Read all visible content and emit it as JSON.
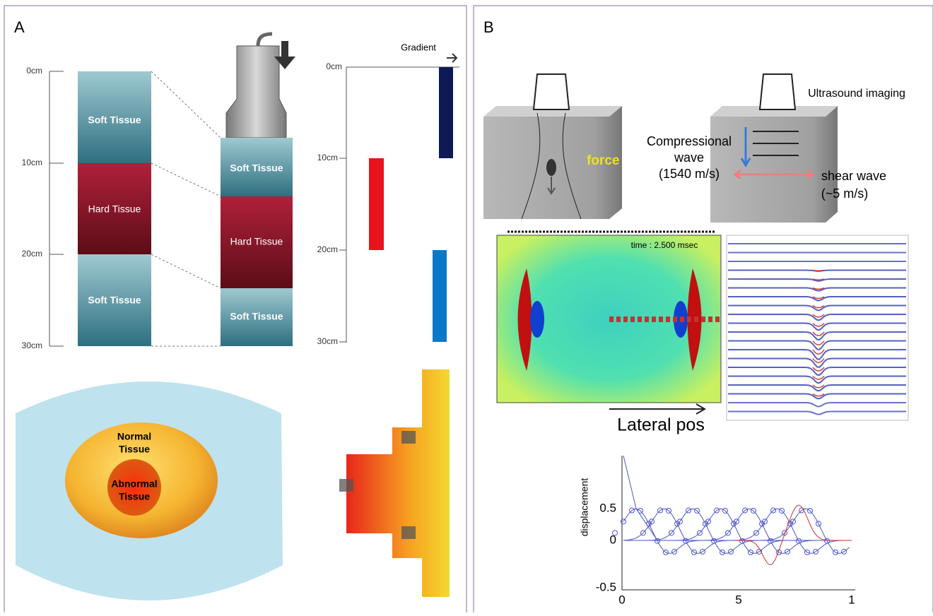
{
  "panel_a": {
    "label": "A",
    "depth_axis": {
      "ticks": [
        "0cm",
        "10cm",
        "20cm",
        "30cm"
      ]
    },
    "column_before": [
      "Soft Tissue",
      "Hard Tissue",
      "Soft Tissue"
    ],
    "column_after": [
      "Soft Tissue",
      "Hard Tissue",
      "Soft Tissue"
    ],
    "gradient": {
      "title": "Gradient",
      "ticks": [
        "0cm",
        "10cm",
        "20cm",
        "30cm"
      ]
    },
    "tissue_map": {
      "outer": [
        "Normal",
        "Tissue"
      ],
      "inner": [
        "Abnormal",
        "Tissue"
      ]
    }
  },
  "panel_b": {
    "label": "B",
    "push": {
      "force": "force"
    },
    "imaging": {
      "title": "Ultrasound imaging",
      "compressional": [
        "Compressional",
        "wave",
        "(1540 m/s)"
      ],
      "shear": [
        "shear wave",
        "(~5 m/s)"
      ]
    },
    "simulation": {
      "time": "time : 2.500 msec",
      "xlabel": "Lateral pos"
    },
    "displacement_plot": {
      "ylabel": "displacement",
      "yticks": [
        "0.5",
        "0",
        "-0.5"
      ],
      "xticks": [
        "0",
        "5",
        "1"
      ]
    }
  }
}
